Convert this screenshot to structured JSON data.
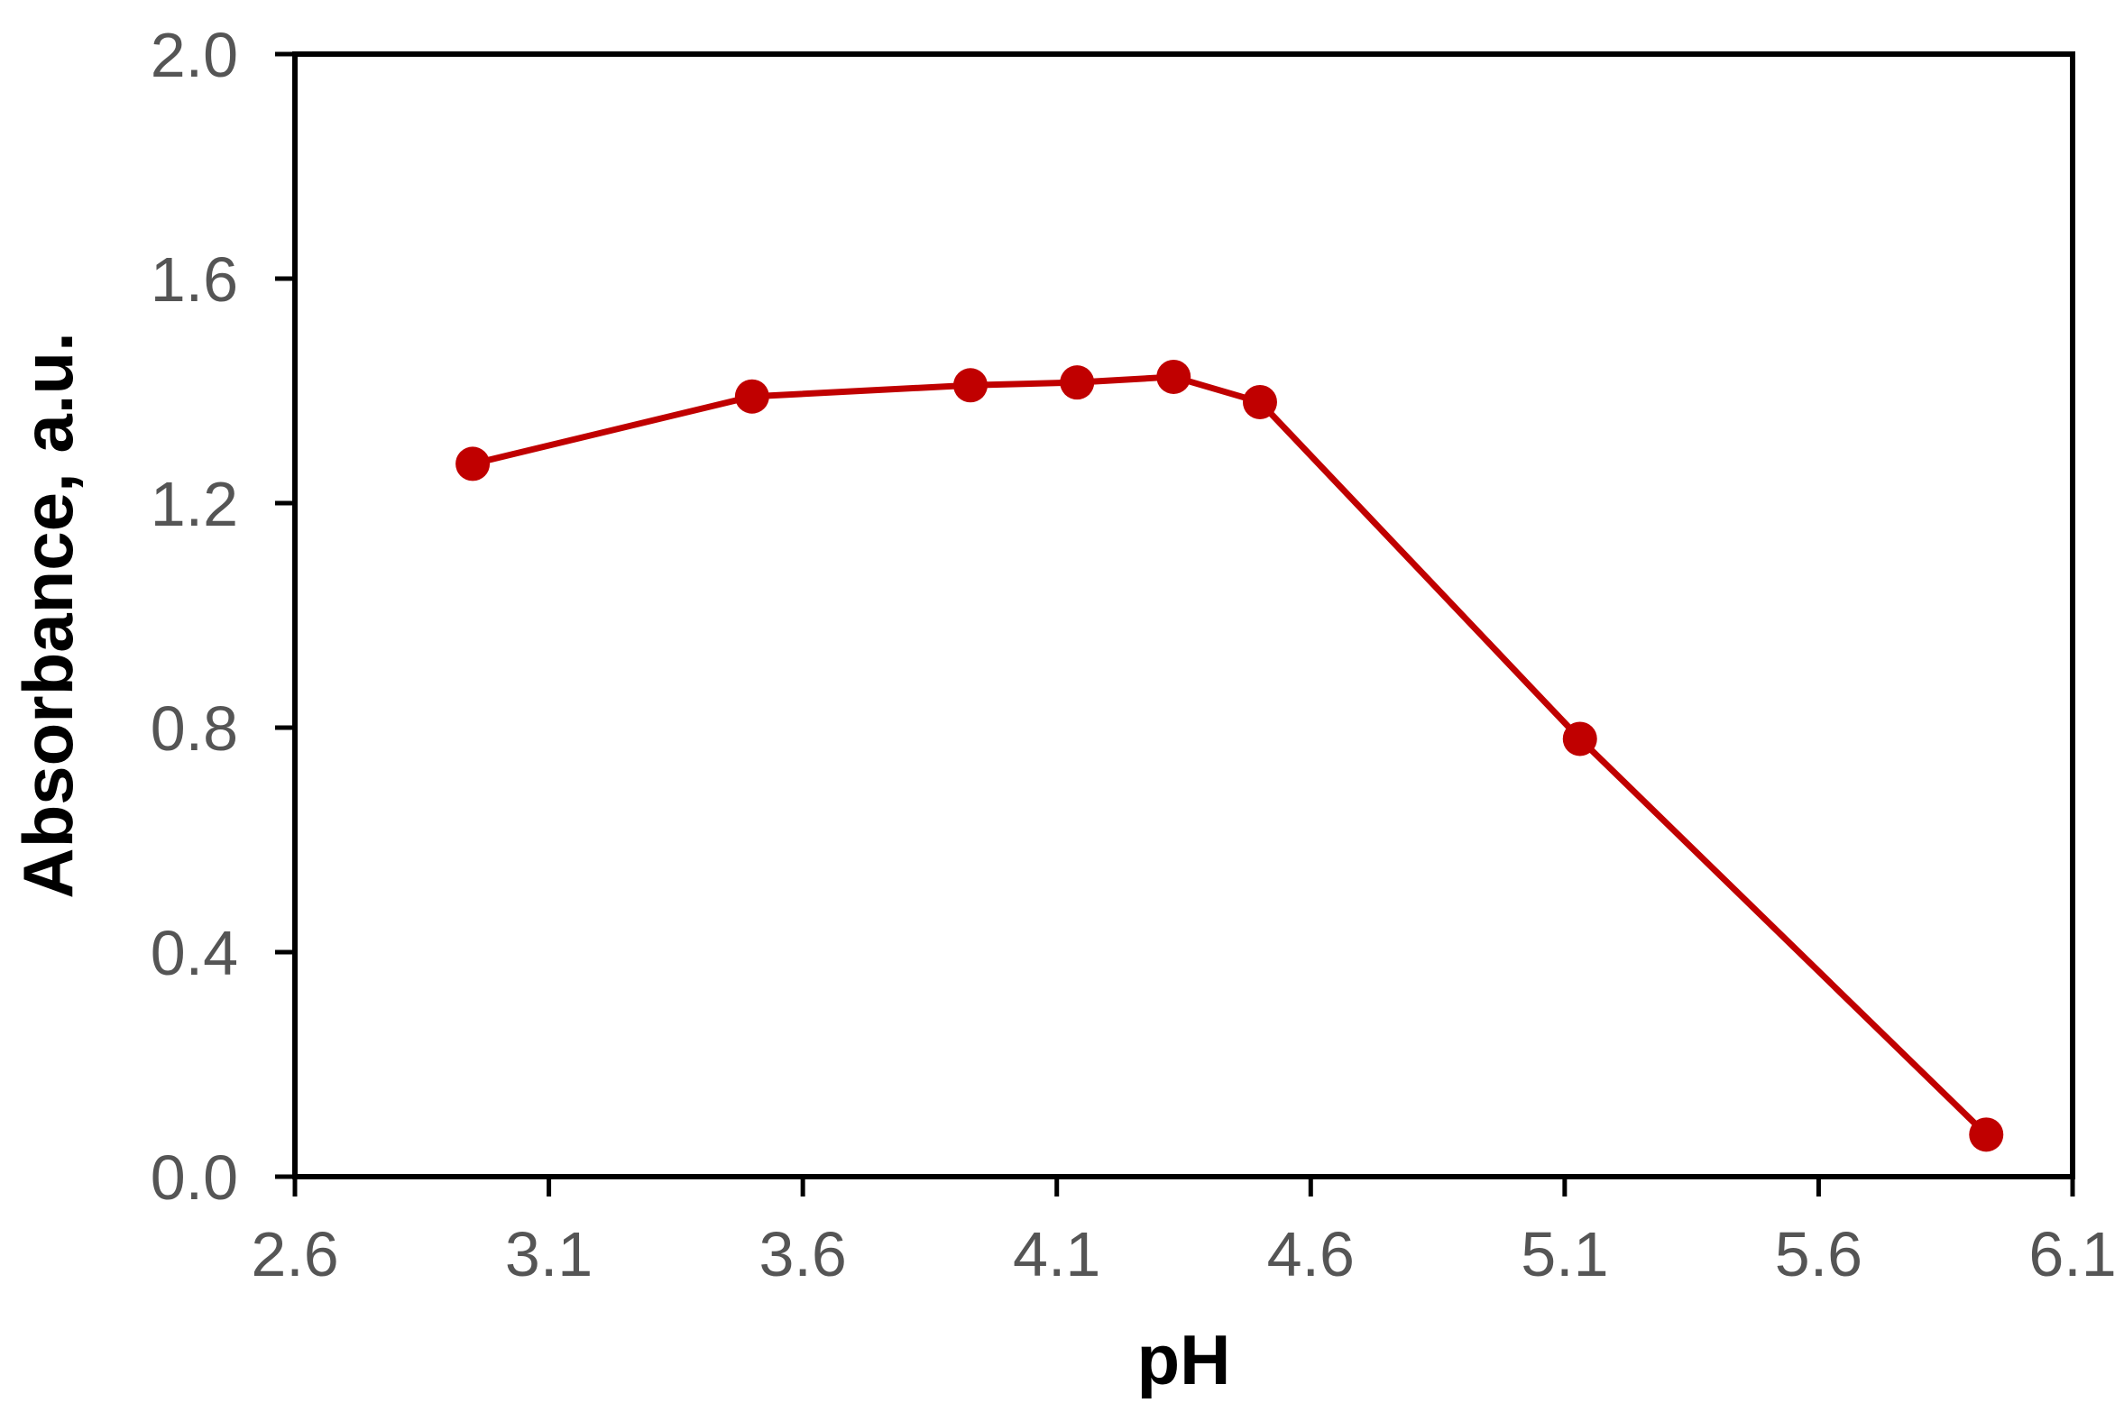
{
  "chart_data": {
    "type": "line",
    "title": "",
    "xlabel": "pH",
    "ylabel": "Absorbance, a.u.",
    "xlim": [
      2.6,
      6.1
    ],
    "ylim": [
      0.0,
      2.0
    ],
    "x_ticks": [
      "2.6",
      "3.1",
      "3.6",
      "4.1",
      "4.6",
      "5.1",
      "5.6",
      "6.1"
    ],
    "y_ticks": [
      "0.0",
      "0.4",
      "0.8",
      "1.2",
      "1.6",
      "2.0"
    ],
    "grid": false,
    "legend": "none",
    "series": [
      {
        "color": "#c00000",
        "marker": "circle",
        "points": [
          {
            "x": 2.95,
            "y": 1.27
          },
          {
            "x": 3.5,
            "y": 1.39
          },
          {
            "x": 3.93,
            "y": 1.41
          },
          {
            "x": 4.14,
            "y": 1.415
          },
          {
            "x": 4.33,
            "y": 1.425
          },
          {
            "x": 4.5,
            "y": 1.38
          },
          {
            "x": 5.13,
            "y": 0.78
          },
          {
            "x": 5.93,
            "y": 0.075
          }
        ]
      }
    ]
  }
}
